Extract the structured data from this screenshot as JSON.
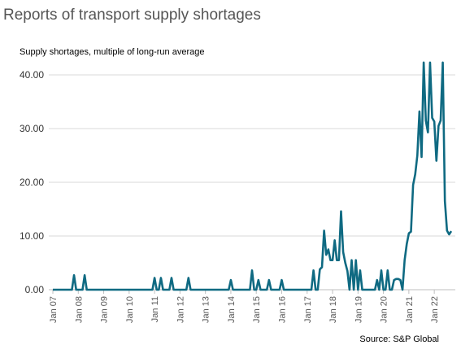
{
  "chart_data": {
    "type": "line",
    "title": "Reports of transport supply shortages",
    "subtitle": "Supply shortages, multiple of long-run average",
    "source": "Source: S&P Global",
    "color": "#0f6a82",
    "grid": true,
    "ylim": [
      0,
      45
    ],
    "yticks": [
      {
        "value": 0,
        "label": "0.00"
      },
      {
        "value": 10,
        "label": "10.00"
      },
      {
        "value": 20,
        "label": "20.00"
      },
      {
        "value": 30,
        "label": "30.00"
      },
      {
        "value": 40,
        "label": "40.00"
      }
    ],
    "categories": [
      "Jan 07",
      null,
      null,
      null,
      null,
      null,
      null,
      null,
      null,
      null,
      null,
      null,
      "Jan 08",
      null,
      null,
      null,
      null,
      null,
      null,
      null,
      null,
      null,
      null,
      null,
      "Jan 09",
      null,
      null,
      null,
      null,
      null,
      null,
      null,
      null,
      null,
      null,
      null,
      "Jan 10",
      null,
      null,
      null,
      null,
      null,
      null,
      null,
      null,
      null,
      null,
      null,
      "Jan 11",
      null,
      null,
      null,
      null,
      null,
      null,
      null,
      null,
      null,
      null,
      null,
      "Jan 12",
      null,
      null,
      null,
      null,
      null,
      null,
      null,
      null,
      null,
      null,
      null,
      "Jan 13",
      null,
      null,
      null,
      null,
      null,
      null,
      null,
      null,
      null,
      null,
      null,
      "Jan 14",
      null,
      null,
      null,
      null,
      null,
      null,
      null,
      null,
      null,
      null,
      null,
      "Jan 15",
      null,
      null,
      null,
      null,
      null,
      null,
      null,
      null,
      null,
      null,
      null,
      "Jan 16",
      null,
      null,
      null,
      null,
      null,
      null,
      null,
      null,
      null,
      null,
      null,
      "Jan 17",
      null,
      null,
      null,
      null,
      null,
      null,
      null,
      null,
      null,
      null,
      null,
      "Jan 18",
      null,
      null,
      null,
      null,
      null,
      null,
      null,
      null,
      null,
      null,
      null,
      "Jan 19",
      null,
      null,
      null,
      null,
      null,
      null,
      null,
      null,
      null,
      null,
      null,
      "Jan 20",
      null,
      null,
      null,
      null,
      null,
      null,
      null,
      null,
      null,
      null,
      null,
      "Jan 21",
      null,
      null,
      null,
      null,
      null,
      null,
      null,
      null,
      null,
      null,
      null,
      "Jan 22",
      null,
      null,
      null,
      null,
      null,
      null,
      null,
      null
    ],
    "values": [
      0,
      0,
      0,
      0,
      0,
      0,
      0,
      0,
      0,
      0,
      2.7,
      0,
      0,
      0,
      0,
      2.7,
      0,
      0,
      0,
      0,
      0,
      0,
      0,
      0,
      0,
      0,
      0,
      0,
      0,
      0,
      0,
      0,
      0,
      0,
      0,
      0,
      0,
      0,
      0,
      0,
      0,
      0,
      0,
      0,
      0,
      0,
      0,
      0,
      2.2,
      0,
      0,
      2.2,
      0,
      0,
      0,
      0,
      2.2,
      0,
      0,
      0,
      0,
      0,
      0,
      0,
      2.2,
      0,
      0,
      0,
      0,
      0,
      0,
      0,
      0,
      0,
      0,
      0,
      0,
      0,
      0,
      0,
      0,
      0,
      0,
      0,
      1.8,
      0,
      0,
      0,
      0,
      0,
      0,
      0,
      0,
      0,
      3.6,
      0,
      0,
      1.8,
      0,
      0,
      0,
      0,
      1.8,
      0,
      0,
      0,
      0,
      0,
      1.8,
      0,
      0,
      0,
      0,
      0,
      0,
      0,
      0,
      0,
      0,
      0,
      0,
      0,
      0,
      3.6,
      0,
      0,
      3.8,
      4.2,
      11,
      6.5,
      7.5,
      5.5,
      5.5,
      9.2,
      5.5,
      5.5,
      14.6,
      7,
      5,
      3.5,
      0,
      5.5,
      0,
      5.5,
      0,
      3.6,
      0,
      0,
      0,
      0,
      0,
      0,
      0,
      1.8,
      0,
      3.6,
      0,
      0,
      3.6,
      0,
      0,
      1.8,
      2,
      2,
      1.8,
      0,
      5.5,
      8.5,
      10.5,
      10.8,
      19.5,
      21.5,
      25,
      33.2,
      24.7,
      42.3,
      31.5,
      29.3,
      42.3,
      32,
      31.3,
      24,
      30.5,
      31.5,
      42.3,
      16.5,
      11,
      10.3,
      10.9
    ]
  }
}
